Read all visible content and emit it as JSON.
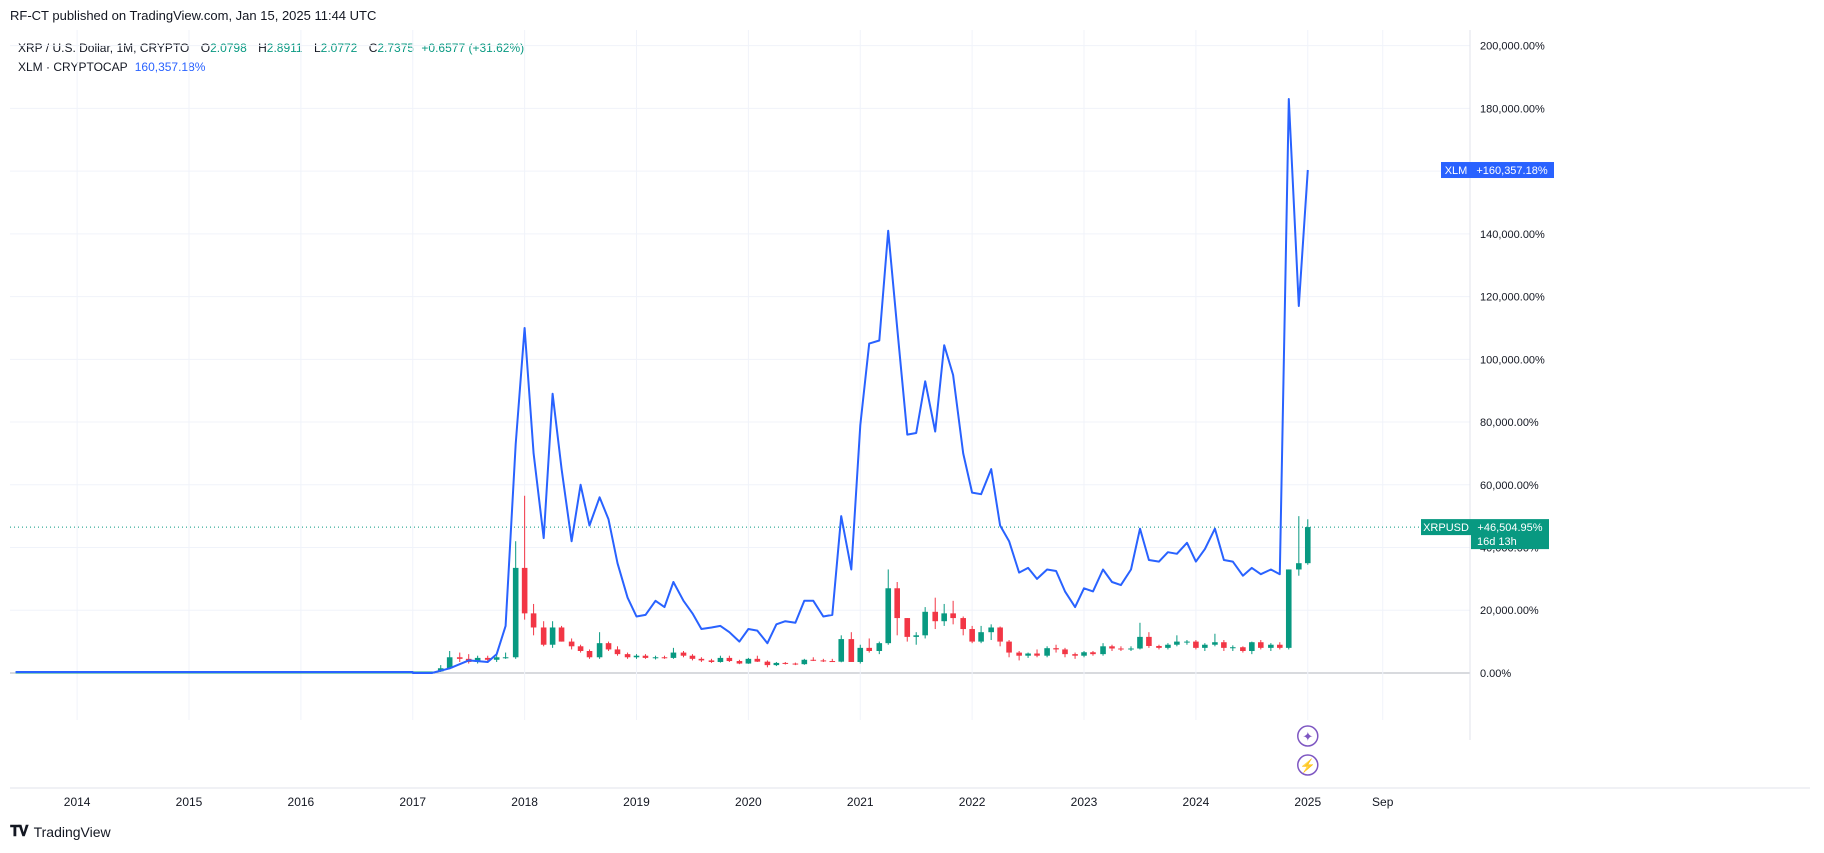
{
  "header": {
    "published": "RF-CT published on TradingView.com, Jan 15, 2025 11:44 UTC"
  },
  "legend": {
    "symbol": "XRP / U.S. Dollar, 1M, CRYPTO",
    "o_label": "O",
    "o": "2.0798",
    "h_label": "H",
    "h": "2.8911",
    "l_label": "L",
    "l": "2.0772",
    "c_label": "C",
    "c": "2.7375",
    "change": "+0.6577 (+31.62%)",
    "xlm_label": "XLM · CRYPTOCAP",
    "xlm_value": "160,357.18%"
  },
  "footer": {
    "brand": "TradingView"
  },
  "colors": {
    "up": "#089981",
    "down": "#f23645",
    "xlm": "#2962ff",
    "grid": "#f0f3fa",
    "axis": "#131722"
  },
  "chart_data": {
    "type": "line",
    "yaxis": {
      "min": -15000,
      "max": 205000,
      "scale": "linear",
      "ticks": [
        0,
        20000,
        40000,
        60000,
        80000,
        100000,
        120000,
        140000,
        160000,
        180000,
        200000
      ],
      "tick_labels": [
        "0.00%",
        "20,000.00%",
        "40,000.00%",
        "60,000.00%",
        "80,000.00%",
        "100,000.00%",
        "120,000.00%",
        "140,000.00%",
        "160,000.00%",
        "180,000.00%",
        "200,000.00%"
      ]
    },
    "xaxis": {
      "min": 2013.4,
      "max": 2026.45,
      "ticks": [
        2014,
        2015,
        2016,
        2017,
        2018,
        2019,
        2020,
        2021,
        2022,
        2023,
        2024,
        2025,
        2025.67
      ],
      "tick_labels": [
        "2014",
        "2015",
        "2016",
        "2017",
        "2018",
        "2019",
        "2020",
        "2021",
        "2022",
        "2023",
        "2024",
        "2025",
        "Sep"
      ]
    },
    "grid": true,
    "series": [
      {
        "name": "XLM",
        "kind": "line",
        "badge": "XLM",
        "last_label": "+160,357.18%",
        "x": [
          2017.0,
          2017.17,
          2017.33,
          2017.5,
          2017.67,
          2017.75,
          2017.83,
          2017.92,
          2018.0,
          2018.08,
          2018.17,
          2018.25,
          2018.33,
          2018.42,
          2018.5,
          2018.58,
          2018.67,
          2018.75,
          2018.83,
          2018.92,
          2019.0,
          2019.08,
          2019.17,
          2019.25,
          2019.33,
          2019.42,
          2019.5,
          2019.58,
          2019.67,
          2019.75,
          2019.83,
          2019.92,
          2020.0,
          2020.08,
          2020.17,
          2020.25,
          2020.33,
          2020.42,
          2020.5,
          2020.58,
          2020.67,
          2020.75,
          2020.83,
          2020.92,
          2021.0,
          2021.08,
          2021.17,
          2021.25,
          2021.33,
          2021.42,
          2021.5,
          2021.58,
          2021.67,
          2021.75,
          2021.83,
          2021.92,
          2022.0,
          2022.08,
          2022.17,
          2022.25,
          2022.33,
          2022.42,
          2022.5,
          2022.58,
          2022.67,
          2022.75,
          2022.83,
          2022.92,
          2023.0,
          2023.08,
          2023.17,
          2023.25,
          2023.33,
          2023.42,
          2023.5,
          2023.58,
          2023.67,
          2023.75,
          2023.83,
          2023.92,
          2024.0,
          2024.08,
          2024.17,
          2024.25,
          2024.33,
          2024.42,
          2024.5,
          2024.58,
          2024.67,
          2024.75,
          2024.83,
          2024.92,
          2025.0
        ],
        "y": [
          0,
          0,
          1500,
          4000,
          3500,
          6000,
          15000,
          73000,
          110000,
          70000,
          43000,
          89000,
          65000,
          42000,
          60000,
          47000,
          56000,
          49000,
          35000,
          24000,
          18000,
          18500,
          23000,
          21000,
          29000,
          23000,
          19000,
          14000,
          14500,
          15000,
          13000,
          10000,
          14000,
          13500,
          9500,
          15500,
          16500,
          16000,
          23000,
          23000,
          18000,
          18500,
          50000,
          33000,
          79000,
          105000,
          106000,
          141000,
          110000,
          76000,
          76500,
          93000,
          77000,
          104500,
          95000,
          70000,
          57500,
          57000,
          65000,
          47000,
          42000,
          32000,
          33500,
          30000,
          33000,
          32500,
          26000,
          21000,
          27000,
          26000,
          33000,
          29000,
          28000,
          33000,
          46000,
          36000,
          35500,
          38500,
          38000,
          41500,
          35500,
          39500,
          46000,
          36000,
          35500,
          31000,
          33500,
          31500,
          33000,
          31500,
          183000,
          117000,
          160357
        ]
      },
      {
        "name": "XRPUSD",
        "kind": "candlestick",
        "badge": "XRPUSD",
        "last_label": "+46,504.95%",
        "countdown": "16d 13h",
        "current": 46504,
        "candles": [
          {
            "x": 2017.25,
            "o": 500,
            "h": 2500,
            "l": 300,
            "c": 1500
          },
          {
            "x": 2017.33,
            "o": 1500,
            "h": 7000,
            "l": 1200,
            "c": 5000
          },
          {
            "x": 2017.42,
            "o": 5000,
            "h": 6500,
            "l": 3500,
            "c": 4500
          },
          {
            "x": 2017.5,
            "o": 4500,
            "h": 6000,
            "l": 3000,
            "c": 3500
          },
          {
            "x": 2017.58,
            "o": 3500,
            "h": 5500,
            "l": 3000,
            "c": 4800
          },
          {
            "x": 2017.67,
            "o": 4800,
            "h": 5500,
            "l": 3500,
            "c": 4200
          },
          {
            "x": 2017.75,
            "o": 4200,
            "h": 6000,
            "l": 3500,
            "c": 5000
          },
          {
            "x": 2017.83,
            "o": 5000,
            "h": 6500,
            "l": 4500,
            "c": 5000
          },
          {
            "x": 2017.92,
            "o": 5000,
            "h": 42000,
            "l": 4500,
            "c": 33500
          },
          {
            "x": 2018.0,
            "o": 33500,
            "h": 56500,
            "l": 17000,
            "c": 19000
          },
          {
            "x": 2018.08,
            "o": 19000,
            "h": 22000,
            "l": 12000,
            "c": 14500
          },
          {
            "x": 2018.17,
            "o": 14500,
            "h": 16500,
            "l": 8500,
            "c": 9000
          },
          {
            "x": 2018.25,
            "o": 9000,
            "h": 16500,
            "l": 8000,
            "c": 14500
          },
          {
            "x": 2018.33,
            "o": 14500,
            "h": 15000,
            "l": 10000,
            "c": 10000
          },
          {
            "x": 2018.42,
            "o": 10000,
            "h": 11000,
            "l": 7500,
            "c": 8500
          },
          {
            "x": 2018.5,
            "o": 8500,
            "h": 9000,
            "l": 6500,
            "c": 7000
          },
          {
            "x": 2018.58,
            "o": 7000,
            "h": 7500,
            "l": 4500,
            "c": 5000
          },
          {
            "x": 2018.67,
            "o": 5000,
            "h": 13000,
            "l": 4500,
            "c": 9500
          },
          {
            "x": 2018.75,
            "o": 9500,
            "h": 10000,
            "l": 7000,
            "c": 7500
          },
          {
            "x": 2018.83,
            "o": 7500,
            "h": 8500,
            "l": 5500,
            "c": 6000
          },
          {
            "x": 2018.92,
            "o": 6000,
            "h": 6500,
            "l": 4500,
            "c": 5000
          },
          {
            "x": 2019.0,
            "o": 5000,
            "h": 6000,
            "l": 4500,
            "c": 5500
          },
          {
            "x": 2019.08,
            "o": 5500,
            "h": 6000,
            "l": 4500,
            "c": 4800
          },
          {
            "x": 2019.17,
            "o": 4800,
            "h": 5500,
            "l": 4300,
            "c": 5000
          },
          {
            "x": 2019.25,
            "o": 5000,
            "h": 5500,
            "l": 4500,
            "c": 4800
          },
          {
            "x": 2019.33,
            "o": 4800,
            "h": 8000,
            "l": 4500,
            "c": 6500
          },
          {
            "x": 2019.42,
            "o": 6500,
            "h": 7000,
            "l": 5000,
            "c": 5500
          },
          {
            "x": 2019.5,
            "o": 5500,
            "h": 6000,
            "l": 4000,
            "c": 4500
          },
          {
            "x": 2019.58,
            "o": 4500,
            "h": 5000,
            "l": 3500,
            "c": 4000
          },
          {
            "x": 2019.67,
            "o": 4000,
            "h": 4500,
            "l": 3200,
            "c": 3500
          },
          {
            "x": 2019.75,
            "o": 3500,
            "h": 5500,
            "l": 3300,
            "c": 4800
          },
          {
            "x": 2019.83,
            "o": 4800,
            "h": 5500,
            "l": 3500,
            "c": 3800
          },
          {
            "x": 2019.92,
            "o": 3800,
            "h": 4200,
            "l": 2800,
            "c": 3000
          },
          {
            "x": 2020.0,
            "o": 3000,
            "h": 4800,
            "l": 2900,
            "c": 4500
          },
          {
            "x": 2020.08,
            "o": 4500,
            "h": 5500,
            "l": 3500,
            "c": 3600
          },
          {
            "x": 2020.17,
            "o": 3600,
            "h": 4000,
            "l": 1800,
            "c": 2500
          },
          {
            "x": 2020.25,
            "o": 2500,
            "h": 3500,
            "l": 2200,
            "c": 3200
          },
          {
            "x": 2020.33,
            "o": 3200,
            "h": 3500,
            "l": 2700,
            "c": 3000
          },
          {
            "x": 2020.42,
            "o": 3000,
            "h": 3300,
            "l": 2500,
            "c": 2800
          },
          {
            "x": 2020.5,
            "o": 2800,
            "h": 4500,
            "l": 2600,
            "c": 4200
          },
          {
            "x": 2020.58,
            "o": 4200,
            "h": 5000,
            "l": 3800,
            "c": 4000
          },
          {
            "x": 2020.67,
            "o": 4000,
            "h": 4500,
            "l": 3500,
            "c": 3800
          },
          {
            "x": 2020.75,
            "o": 3800,
            "h": 4500,
            "l": 3500,
            "c": 3600
          },
          {
            "x": 2020.83,
            "o": 3600,
            "h": 12000,
            "l": 3400,
            "c": 10800
          },
          {
            "x": 2020.92,
            "o": 10800,
            "h": 13000,
            "l": 3500,
            "c": 3500
          },
          {
            "x": 2021.0,
            "o": 3500,
            "h": 9000,
            "l": 3000,
            "c": 8000
          },
          {
            "x": 2021.08,
            "o": 8000,
            "h": 11000,
            "l": 6500,
            "c": 7000
          },
          {
            "x": 2021.17,
            "o": 7000,
            "h": 10000,
            "l": 6000,
            "c": 9500
          },
          {
            "x": 2021.25,
            "o": 9500,
            "h": 33000,
            "l": 9000,
            "c": 27000
          },
          {
            "x": 2021.33,
            "o": 27000,
            "h": 29000,
            "l": 12000,
            "c": 17500
          },
          {
            "x": 2021.42,
            "o": 17500,
            "h": 17500,
            "l": 10000,
            "c": 11500
          },
          {
            "x": 2021.5,
            "o": 11500,
            "h": 13000,
            "l": 9000,
            "c": 12000
          },
          {
            "x": 2021.58,
            "o": 12000,
            "h": 21000,
            "l": 11000,
            "c": 19500
          },
          {
            "x": 2021.67,
            "o": 19500,
            "h": 24000,
            "l": 14000,
            "c": 16500
          },
          {
            "x": 2021.75,
            "o": 16500,
            "h": 22000,
            "l": 15000,
            "c": 19000
          },
          {
            "x": 2021.83,
            "o": 19000,
            "h": 23000,
            "l": 15500,
            "c": 17500
          },
          {
            "x": 2021.92,
            "o": 17500,
            "h": 18000,
            "l": 12000,
            "c": 14000
          },
          {
            "x": 2022.0,
            "o": 14000,
            "h": 15000,
            "l": 9500,
            "c": 10000
          },
          {
            "x": 2022.08,
            "o": 10000,
            "h": 15000,
            "l": 9500,
            "c": 13000
          },
          {
            "x": 2022.17,
            "o": 13000,
            "h": 15500,
            "l": 10500,
            "c": 14500
          },
          {
            "x": 2022.25,
            "o": 14500,
            "h": 14800,
            "l": 8500,
            "c": 10000
          },
          {
            "x": 2022.33,
            "o": 10000,
            "h": 10500,
            "l": 5000,
            "c": 6500
          },
          {
            "x": 2022.42,
            "o": 6500,
            "h": 7000,
            "l": 4000,
            "c": 5500
          },
          {
            "x": 2022.5,
            "o": 5500,
            "h": 6500,
            "l": 4800,
            "c": 6200
          },
          {
            "x": 2022.58,
            "o": 6200,
            "h": 7500,
            "l": 5000,
            "c": 5500
          },
          {
            "x": 2022.67,
            "o": 5500,
            "h": 8500,
            "l": 5000,
            "c": 7900
          },
          {
            "x": 2022.75,
            "o": 7900,
            "h": 9000,
            "l": 6500,
            "c": 7500
          },
          {
            "x": 2022.83,
            "o": 7500,
            "h": 8000,
            "l": 5000,
            "c": 6000
          },
          {
            "x": 2022.92,
            "o": 6000,
            "h": 6500,
            "l": 4500,
            "c": 5500
          },
          {
            "x": 2023.0,
            "o": 5500,
            "h": 7000,
            "l": 5000,
            "c": 6600
          },
          {
            "x": 2023.08,
            "o": 6600,
            "h": 7000,
            "l": 5500,
            "c": 6000
          },
          {
            "x": 2023.17,
            "o": 6000,
            "h": 9500,
            "l": 5500,
            "c": 8500
          },
          {
            "x": 2023.25,
            "o": 8500,
            "h": 9000,
            "l": 7000,
            "c": 7800
          },
          {
            "x": 2023.33,
            "o": 7800,
            "h": 8500,
            "l": 7000,
            "c": 7500
          },
          {
            "x": 2023.42,
            "o": 7500,
            "h": 8500,
            "l": 7000,
            "c": 7800
          },
          {
            "x": 2023.5,
            "o": 7800,
            "h": 16000,
            "l": 7500,
            "c": 11500
          },
          {
            "x": 2023.58,
            "o": 11500,
            "h": 13000,
            "l": 8000,
            "c": 8600
          },
          {
            "x": 2023.67,
            "o": 8600,
            "h": 9000,
            "l": 7500,
            "c": 8000
          },
          {
            "x": 2023.75,
            "o": 8000,
            "h": 9500,
            "l": 7500,
            "c": 9000
          },
          {
            "x": 2023.83,
            "o": 9000,
            "h": 12000,
            "l": 8500,
            "c": 10000
          },
          {
            "x": 2023.92,
            "o": 10000,
            "h": 10500,
            "l": 9000,
            "c": 10000
          },
          {
            "x": 2024.0,
            "o": 10000,
            "h": 10500,
            "l": 7500,
            "c": 8000
          },
          {
            "x": 2024.08,
            "o": 8000,
            "h": 9500,
            "l": 7000,
            "c": 9000
          },
          {
            "x": 2024.17,
            "o": 9000,
            "h": 12500,
            "l": 8500,
            "c": 9800
          },
          {
            "x": 2024.25,
            "o": 9800,
            "h": 10500,
            "l": 7000,
            "c": 8000
          },
          {
            "x": 2024.33,
            "o": 8000,
            "h": 8800,
            "l": 7000,
            "c": 8200
          },
          {
            "x": 2024.42,
            "o": 8200,
            "h": 8500,
            "l": 6500,
            "c": 7000
          },
          {
            "x": 2024.5,
            "o": 7000,
            "h": 10000,
            "l": 6000,
            "c": 9800
          },
          {
            "x": 2024.58,
            "o": 9800,
            "h": 10500,
            "l": 7500,
            "c": 8000
          },
          {
            "x": 2024.67,
            "o": 8000,
            "h": 9500,
            "l": 7000,
            "c": 9000
          },
          {
            "x": 2024.75,
            "o": 9000,
            "h": 9800,
            "l": 7500,
            "c": 8000
          },
          {
            "x": 2024.83,
            "o": 8000,
            "h": 33000,
            "l": 7500,
            "c": 33000
          },
          {
            "x": 2024.92,
            "o": 33000,
            "h": 50000,
            "l": 31000,
            "c": 35000
          },
          {
            "x": 2025.0,
            "o": 35000,
            "h": 49000,
            "l": 34500,
            "c": 46504
          }
        ]
      }
    ]
  }
}
